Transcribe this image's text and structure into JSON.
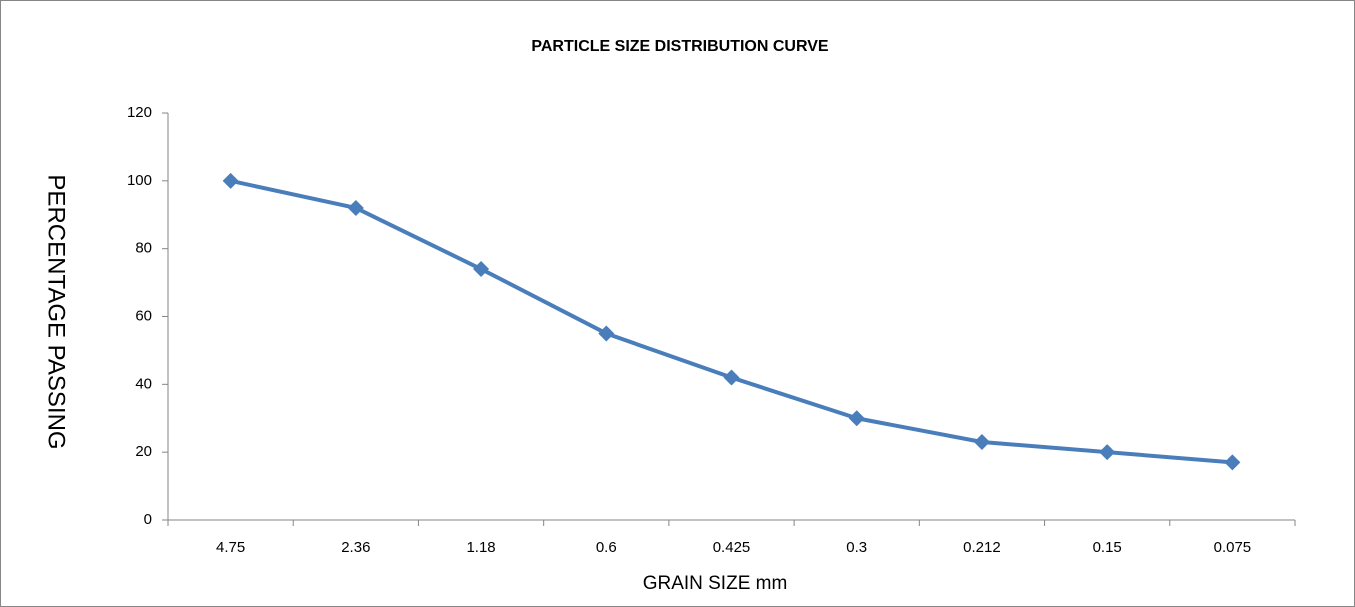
{
  "chart_data": {
    "type": "line",
    "title": "PARTICLE SIZE DISTRIBUTION CURVE",
    "x_label": "GRAIN SIZE mm",
    "y_label": "PERCENTAGE PASSING",
    "categories": [
      "4.75",
      "2.36",
      "1.18",
      "0.6",
      "0.425",
      "0.3",
      "0.212",
      "0.15",
      "0.075"
    ],
    "series": [
      {
        "name": "Series1",
        "color": "#4a7ebb",
        "values": [
          100,
          92,
          74,
          55,
          42,
          30,
          23,
          20,
          17
        ]
      }
    ],
    "ylim": [
      0,
      120
    ],
    "yticks": [
      0,
      20,
      40,
      60,
      80,
      100,
      120
    ],
    "grid": false,
    "marker": "diamond"
  }
}
